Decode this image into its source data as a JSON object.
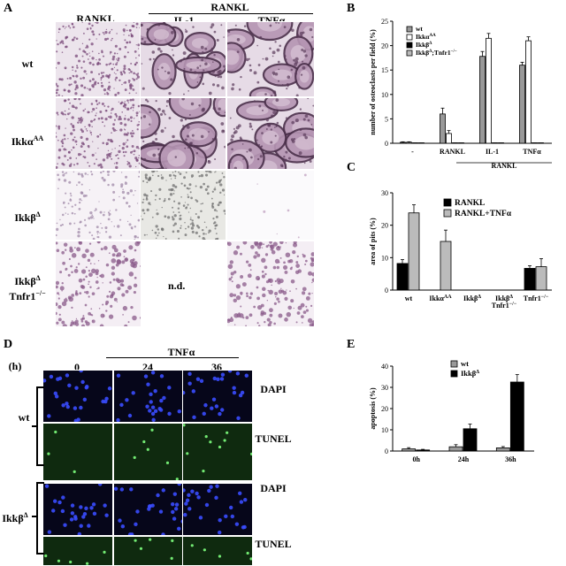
{
  "panels": {
    "A": {
      "letter": "A",
      "col_headers": [
        "RANKL",
        "IL-1",
        "TNFα"
      ],
      "group_header": "RANKL",
      "rows": [
        {
          "label": "wt"
        },
        {
          "label": "Ikkα",
          "sup": "AA"
        },
        {
          "label": "Ikkβ",
          "sup": "Δ"
        },
        {
          "label": "Ikkβ",
          "sup": "Δ",
          "label2": "Tnfr1",
          "sup2": "−/−"
        }
      ],
      "nd_label": "n.d."
    },
    "B": {
      "letter": "B"
    },
    "C": {
      "letter": "C"
    },
    "D": {
      "letter": "D",
      "time_unit": "(h)",
      "treatment": "TNFα",
      "times": [
        "0",
        "24",
        "36"
      ],
      "stain_labels": [
        "DAPI",
        "TUNEL",
        "DAPI",
        "TUNEL"
      ],
      "groups": [
        {
          "label": "wt"
        },
        {
          "label": "Ikkβ",
          "sup": "Δ"
        }
      ]
    },
    "E": {
      "letter": "E"
    }
  },
  "chart_data": [
    {
      "panel": "B",
      "type": "bar",
      "ylabel": "number of osteoclasts per field (%)",
      "ylim": [
        0,
        25
      ],
      "yticks": [
        0,
        5,
        10,
        15,
        20,
        25
      ],
      "categories": [
        "-",
        "RANKL",
        "IL-1",
        "TNFα"
      ],
      "group_label": "RANKL",
      "series": [
        {
          "name": "wt",
          "label": "wt",
          "color": "#999999",
          "values": [
            0.2,
            6.0,
            17.8,
            16.0
          ],
          "errors": [
            0.1,
            1.2,
            1.0,
            0.6
          ]
        },
        {
          "name": "IkkαAA",
          "label": "Ikkα",
          "sup": "AA",
          "color": "#ffffff",
          "values": [
            0.2,
            2.0,
            21.5,
            21.0
          ],
          "errors": [
            0.1,
            0.6,
            1.0,
            0.8
          ]
        },
        {
          "name": "IkkβΔ",
          "label": "Ikkβ",
          "sup": "Δ",
          "color": "#000000",
          "values": [
            0.1,
            0.1,
            0.1,
            0.1
          ],
          "errors": [
            0,
            0,
            0,
            0
          ]
        },
        {
          "name": "IkkβΔ;Tnfr1-/-",
          "label": "Ikkβ",
          "sup": "Δ",
          "label_tail": ";Tnfr1",
          "sup_tail": "−/−",
          "color": "#bbbbbb",
          "values": [
            0.1,
            0.1,
            0.1,
            0.1
          ],
          "errors": [
            0,
            0,
            0,
            0
          ]
        }
      ],
      "legend": "top-left"
    },
    {
      "panel": "C",
      "type": "bar",
      "ylabel": "area of pits (%)",
      "ylim": [
        0,
        30
      ],
      "yticks": [
        0,
        10,
        20,
        30
      ],
      "categories": [
        "wt",
        "IkkαAA",
        "IkkβΔ",
        "IkkβΔ Tnfr1-/-",
        "Tnfr1-/-"
      ],
      "series": [
        {
          "name": "RANKL",
          "color": "#000000",
          "values": [
            8.2,
            0,
            0,
            0,
            6.7
          ],
          "errors": [
            1.2,
            0,
            0,
            0,
            0.8
          ]
        },
        {
          "name": "RANKL+TNFα",
          "color": "#bbbbbb",
          "values": [
            23.8,
            15.0,
            0,
            0,
            7.2
          ],
          "errors": [
            2.5,
            3.5,
            0,
            0,
            2.5
          ]
        }
      ],
      "legend": "top-right"
    },
    {
      "panel": "E",
      "type": "bar",
      "ylabel": "apoptosis (%)",
      "ylim": [
        0,
        40
      ],
      "yticks": [
        0,
        10,
        20,
        30,
        40
      ],
      "categories": [
        "0h",
        "24h",
        "36h"
      ],
      "series": [
        {
          "name": "wt",
          "label": "wt",
          "color": "#999999",
          "values": [
            1.0,
            2.0,
            1.5
          ],
          "errors": [
            0.6,
            1.0,
            0.6
          ]
        },
        {
          "name": "IkkβΔ",
          "label": "Ikkβ",
          "sup": "Δ",
          "color": "#000000",
          "values": [
            0.5,
            10.5,
            32.5
          ],
          "errors": [
            0.3,
            2.2,
            3.5
          ]
        }
      ],
      "legend": "top-center"
    }
  ]
}
